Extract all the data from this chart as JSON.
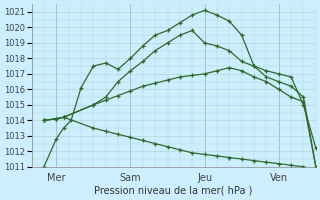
{
  "xlabel": "Pression niveau de la mer( hPa )",
  "bg_color": "#cceeff",
  "grid_color": "#b0d8d8",
  "line_color": "#2d6a2d",
  "ylim": [
    1011,
    1021.5
  ],
  "yticks": [
    1011,
    1012,
    1013,
    1014,
    1015,
    1016,
    1017,
    1018,
    1019,
    1020,
    1021
  ],
  "xtick_labels": [
    "Mer",
    "Sam",
    "Jeu",
    "Ven"
  ],
  "xtick_positions": [
    1,
    4,
    7,
    10
  ],
  "xlim": [
    0,
    11.5
  ],
  "line1_x": [
    0.5,
    1.0,
    1.3,
    1.6,
    2.0,
    2.5,
    3.0,
    3.5,
    4.0,
    4.5,
    5.0,
    5.5,
    6.0,
    6.5,
    7.0,
    7.5,
    8.0,
    8.5,
    9.0,
    9.5,
    10.0,
    10.5,
    11.0,
    11.5
  ],
  "line1_y": [
    1011.0,
    1012.8,
    1013.5,
    1014.0,
    1016.1,
    1017.5,
    1017.7,
    1017.3,
    1018.0,
    1018.8,
    1019.5,
    1019.8,
    1020.3,
    1020.8,
    1021.1,
    1020.8,
    1020.4,
    1019.5,
    1017.5,
    1017.2,
    1017.0,
    1016.8,
    1015.0,
    1012.2
  ],
  "line2_x": [
    0.5,
    1.0,
    1.3,
    2.5,
    3.0,
    3.5,
    4.0,
    4.5,
    5.0,
    5.5,
    6.0,
    6.5,
    7.0,
    7.5,
    8.0,
    8.5,
    9.0,
    9.5,
    10.0,
    10.5,
    11.0,
    11.5
  ],
  "line2_y": [
    1014.0,
    1014.1,
    1014.2,
    1015.0,
    1015.5,
    1016.5,
    1017.2,
    1017.8,
    1018.5,
    1019.0,
    1019.5,
    1019.8,
    1019.0,
    1018.8,
    1018.5,
    1017.8,
    1017.5,
    1016.8,
    1016.5,
    1016.2,
    1015.5,
    1011.0
  ],
  "line3_x": [
    0.5,
    1.0,
    1.3,
    2.5,
    3.0,
    3.5,
    4.0,
    4.5,
    5.0,
    5.5,
    6.0,
    6.5,
    7.0,
    7.5,
    8.0,
    8.5,
    9.0,
    9.5,
    10.0,
    10.5,
    11.0,
    11.5
  ],
  "line3_y": [
    1014.0,
    1014.1,
    1014.2,
    1015.0,
    1015.3,
    1015.6,
    1015.9,
    1016.2,
    1016.4,
    1016.6,
    1016.8,
    1016.9,
    1017.0,
    1017.2,
    1017.4,
    1017.2,
    1016.8,
    1016.5,
    1016.0,
    1015.5,
    1015.2,
    1011.0
  ],
  "line4_x": [
    0.5,
    1.0,
    1.3,
    2.5,
    3.0,
    3.5,
    4.0,
    4.5,
    5.0,
    5.5,
    6.0,
    6.5,
    7.0,
    7.5,
    8.0,
    8.5,
    9.0,
    9.5,
    10.0,
    10.5,
    11.0,
    11.5
  ],
  "line4_y": [
    1014.0,
    1014.1,
    1014.2,
    1013.5,
    1013.3,
    1013.1,
    1012.9,
    1012.7,
    1012.5,
    1012.3,
    1012.1,
    1011.9,
    1011.8,
    1011.7,
    1011.6,
    1011.5,
    1011.4,
    1011.3,
    1011.2,
    1011.1,
    1011.0,
    1010.8
  ]
}
